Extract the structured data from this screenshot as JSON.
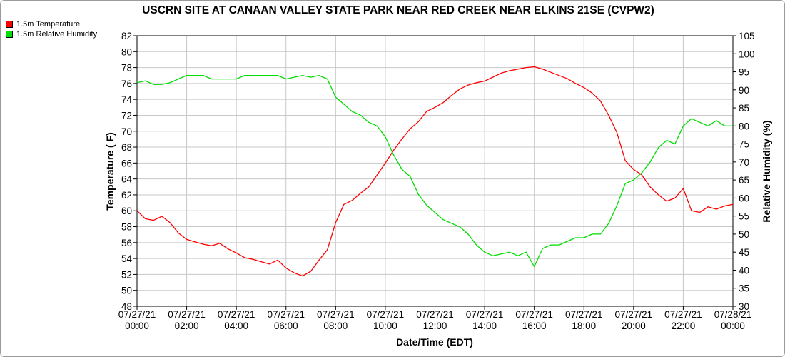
{
  "chart_data": {
    "type": "line",
    "title": "USCRN SITE AT CANAAN VALLEY STATE PARK NEAR RED CREEK NEAR ELKINS 21SE (CVPW2)",
    "xlabel": "Date/Time (EDT)",
    "ylabel": "Temperature ( F)",
    "y2label": "Relative Humidity (%)",
    "xlim": [
      "2021-07-27 00:00",
      "2021-07-28 00:00"
    ],
    "ylim": [
      48,
      82
    ],
    "y2lim": [
      30,
      105
    ],
    "yticks": [
      48,
      50,
      52,
      54,
      56,
      58,
      60,
      62,
      64,
      66,
      68,
      70,
      72,
      74,
      76,
      78,
      80,
      82
    ],
    "y2ticks": [
      30,
      35,
      40,
      45,
      50,
      55,
      60,
      65,
      70,
      75,
      80,
      85,
      90,
      95,
      100,
      105
    ],
    "xticks": [
      {
        "date": "07/27/21",
        "time": "00:00"
      },
      {
        "date": "07/27/21",
        "time": "02:00"
      },
      {
        "date": "07/27/21",
        "time": "04:00"
      },
      {
        "date": "07/27/21",
        "time": "06:00"
      },
      {
        "date": "07/27/21",
        "time": "08:00"
      },
      {
        "date": "07/27/21",
        "time": "10:00"
      },
      {
        "date": "07/27/21",
        "time": "12:00"
      },
      {
        "date": "07/27/21",
        "time": "14:00"
      },
      {
        "date": "07/27/21",
        "time": "16:00"
      },
      {
        "date": "07/27/21",
        "time": "18:00"
      },
      {
        "date": "07/27/21",
        "time": "20:00"
      },
      {
        "date": "07/27/21",
        "time": "22:00"
      },
      {
        "date": "07/28/21",
        "time": "00:00"
      }
    ],
    "grid": true,
    "legend_position": "top-left",
    "series": [
      {
        "name": "1.5m Temperature",
        "color": "#ff0000",
        "axis": "left",
        "x": [
          "2021-07-27 00:00",
          "2021-07-27 00:20",
          "2021-07-27 00:40",
          "2021-07-27 01:00",
          "2021-07-27 01:20",
          "2021-07-27 01:40",
          "2021-07-27 02:00",
          "2021-07-27 02:20",
          "2021-07-27 02:40",
          "2021-07-27 03:00",
          "2021-07-27 03:20",
          "2021-07-27 03:40",
          "2021-07-27 04:00",
          "2021-07-27 04:20",
          "2021-07-27 04:40",
          "2021-07-27 05:00",
          "2021-07-27 05:20",
          "2021-07-27 05:40",
          "2021-07-27 06:00",
          "2021-07-27 06:20",
          "2021-07-27 06:40",
          "2021-07-27 07:00",
          "2021-07-27 07:20",
          "2021-07-27 07:40",
          "2021-07-27 08:00",
          "2021-07-27 08:20",
          "2021-07-27 08:40",
          "2021-07-27 09:00",
          "2021-07-27 09:20",
          "2021-07-27 09:40",
          "2021-07-27 10:00",
          "2021-07-27 10:20",
          "2021-07-27 10:40",
          "2021-07-27 11:00",
          "2021-07-27 11:20",
          "2021-07-27 11:40",
          "2021-07-27 12:00",
          "2021-07-27 12:20",
          "2021-07-27 12:40",
          "2021-07-27 13:00",
          "2021-07-27 13:20",
          "2021-07-27 13:40",
          "2021-07-27 14:00",
          "2021-07-27 14:20",
          "2021-07-27 14:40",
          "2021-07-27 15:00",
          "2021-07-27 15:20",
          "2021-07-27 15:40",
          "2021-07-27 16:00",
          "2021-07-27 16:20",
          "2021-07-27 16:40",
          "2021-07-27 17:00",
          "2021-07-27 17:20",
          "2021-07-27 17:40",
          "2021-07-27 18:00",
          "2021-07-27 18:20",
          "2021-07-27 18:40",
          "2021-07-27 19:00",
          "2021-07-27 19:20",
          "2021-07-27 19:40",
          "2021-07-27 20:00",
          "2021-07-27 20:20",
          "2021-07-27 20:40",
          "2021-07-27 21:00",
          "2021-07-27 21:20",
          "2021-07-27 21:40",
          "2021-07-27 22:00",
          "2021-07-27 22:20",
          "2021-07-27 22:40",
          "2021-07-27 23:00",
          "2021-07-27 23:20",
          "2021-07-27 23:40",
          "2021-07-28 00:00"
        ],
        "values": [
          60.0,
          59.0,
          58.8,
          59.3,
          58.5,
          57.2,
          56.4,
          56.1,
          55.8,
          55.6,
          55.9,
          55.2,
          54.7,
          54.1,
          53.9,
          53.6,
          53.3,
          53.8,
          52.8,
          52.2,
          51.8,
          52.4,
          53.8,
          55.1,
          58.5,
          60.8,
          61.3,
          62.2,
          63.0,
          64.5,
          66.0,
          67.6,
          69.0,
          70.3,
          71.2,
          72.5,
          73.0,
          73.6,
          74.5,
          75.3,
          75.8,
          76.1,
          76.3,
          76.8,
          77.3,
          77.6,
          77.8,
          78.0,
          78.1,
          77.8,
          77.4,
          77.0,
          76.6,
          76.0,
          75.5,
          74.8,
          73.8,
          72.0,
          69.8,
          66.3,
          65.2,
          64.5,
          63.0,
          62.0,
          61.2,
          61.6,
          62.8,
          60.0,
          59.8,
          60.5,
          60.2,
          60.6,
          60.8
        ]
      },
      {
        "name": "1.5m Relative Humidity",
        "color": "#00dd00",
        "axis": "right",
        "x": [
          "2021-07-27 00:00",
          "2021-07-27 00:20",
          "2021-07-27 00:40",
          "2021-07-27 01:00",
          "2021-07-27 01:20",
          "2021-07-27 01:40",
          "2021-07-27 02:00",
          "2021-07-27 02:20",
          "2021-07-27 02:40",
          "2021-07-27 03:00",
          "2021-07-27 03:20",
          "2021-07-27 03:40",
          "2021-07-27 04:00",
          "2021-07-27 04:20",
          "2021-07-27 04:40",
          "2021-07-27 05:00",
          "2021-07-27 05:20",
          "2021-07-27 05:40",
          "2021-07-27 06:00",
          "2021-07-27 06:20",
          "2021-07-27 06:40",
          "2021-07-27 07:00",
          "2021-07-27 07:20",
          "2021-07-27 07:40",
          "2021-07-27 08:00",
          "2021-07-27 08:20",
          "2021-07-27 08:40",
          "2021-07-27 09:00",
          "2021-07-27 09:20",
          "2021-07-27 09:40",
          "2021-07-27 10:00",
          "2021-07-27 10:20",
          "2021-07-27 10:40",
          "2021-07-27 11:00",
          "2021-07-27 11:20",
          "2021-07-27 11:40",
          "2021-07-27 12:00",
          "2021-07-27 12:20",
          "2021-07-27 12:40",
          "2021-07-27 13:00",
          "2021-07-27 13:20",
          "2021-07-27 13:40",
          "2021-07-27 14:00",
          "2021-07-27 14:20",
          "2021-07-27 14:40",
          "2021-07-27 15:00",
          "2021-07-27 15:20",
          "2021-07-27 15:40",
          "2021-07-27 16:00",
          "2021-07-27 16:20",
          "2021-07-27 16:40",
          "2021-07-27 17:00",
          "2021-07-27 17:20",
          "2021-07-27 17:40",
          "2021-07-27 18:00",
          "2021-07-27 18:20",
          "2021-07-27 18:40",
          "2021-07-27 19:00",
          "2021-07-27 19:20",
          "2021-07-27 19:40",
          "2021-07-27 20:00",
          "2021-07-27 20:20",
          "2021-07-27 20:40",
          "2021-07-27 21:00",
          "2021-07-27 21:20",
          "2021-07-27 21:40",
          "2021-07-27 22:00",
          "2021-07-27 22:20",
          "2021-07-27 22:40",
          "2021-07-27 23:00",
          "2021-07-27 23:20",
          "2021-07-27 23:40",
          "2021-07-28 00:00"
        ],
        "values": [
          92,
          92.5,
          91.5,
          91.5,
          92,
          93,
          94,
          94,
          94,
          93,
          93,
          93,
          93,
          94,
          94,
          94,
          94,
          94,
          93,
          93.5,
          94,
          93.5,
          94,
          93,
          88,
          86,
          84,
          83,
          81,
          80,
          77,
          72,
          68,
          66,
          61,
          58,
          56,
          54,
          53,
          52,
          50,
          47,
          45,
          44,
          44.5,
          45,
          44,
          45,
          41,
          46,
          47,
          47,
          48,
          49,
          49,
          50,
          50,
          53,
          58,
          64,
          65,
          67,
          70,
          74,
          76,
          75,
          80,
          82,
          81,
          80,
          81.5,
          80,
          80
        ]
      }
    ]
  }
}
